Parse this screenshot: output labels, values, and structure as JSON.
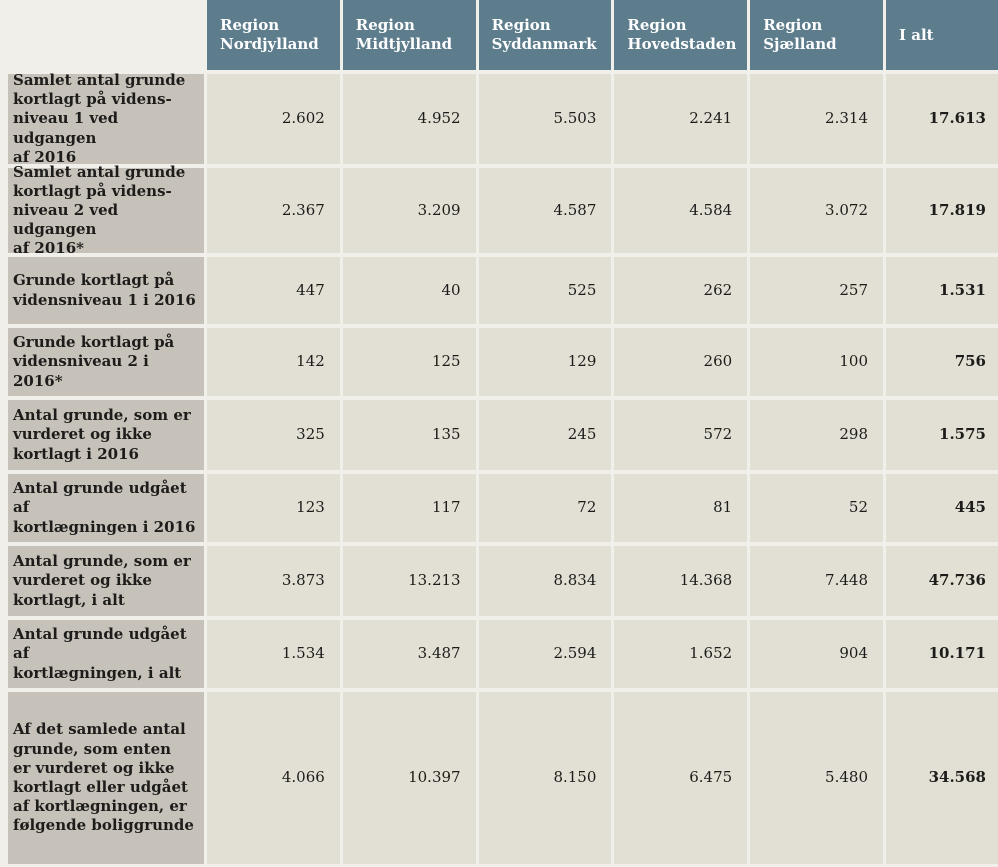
{
  "table": {
    "headers": [
      "Region\nNordjylland",
      "Region\nMidtjylland",
      "Region\nSyddanmark",
      "Region\nHovedstaden",
      "Region\nSjælland",
      "I alt"
    ],
    "rows": [
      {
        "label": "Samlet antal grunde\nkortlagt på videns-\nniveau 1 ved udgangen\naf 2016",
        "values": [
          "2.602",
          "4.952",
          "5.503",
          "2.241",
          "2.314"
        ],
        "total": "17.613"
      },
      {
        "label": "Samlet antal grunde\nkortlagt på videns-\nniveau 2 ved udgangen\naf 2016*",
        "values": [
          "2.367",
          "3.209",
          "4.587",
          "4.584",
          "3.072"
        ],
        "total": "17.819"
      },
      {
        "label": "Grunde kortlagt på\nvidensniveau 1 i 2016",
        "values": [
          "447",
          "40",
          "525",
          "262",
          "257"
        ],
        "total": "1.531"
      },
      {
        "label": "Grunde kortlagt på\nvidensniveau 2 i 2016*",
        "values": [
          "142",
          "125",
          "129",
          "260",
          "100"
        ],
        "total": "756"
      },
      {
        "label": "Antal grunde, som er\nvurderet og ikke\nkortlagt i 2016",
        "values": [
          "325",
          "135",
          "245",
          "572",
          "298"
        ],
        "total": "1.575"
      },
      {
        "label": "Antal grunde udgået af\nkortlægningen i 2016",
        "values": [
          "123",
          "117",
          "72",
          "81",
          "52"
        ],
        "total": "445"
      },
      {
        "label": "Antal grunde, som er\nvurderet og ikke\nkortlagt, i alt",
        "values": [
          "3.873",
          "13.213",
          "8.834",
          "14.368",
          "7.448"
        ],
        "total": "47.736"
      },
      {
        "label": "Antal grunde udgået af\nkortlægningen, i alt",
        "values": [
          "1.534",
          "3.487",
          "2.594",
          "1.652",
          "904"
        ],
        "total": "10.171"
      },
      {
        "label": "Af det samlede antal\ngrunde, som enten\ner vurderet og ikke\nkortlagt eller udgået\naf kortlægningen, er\nfølgende boliggrunde",
        "values": [
          "4.066",
          "10.397",
          "8.150",
          "6.475",
          "5.480"
        ],
        "total": "34.568"
      }
    ]
  },
  "colors": {
    "page_bg": "#f0efe9",
    "header_bg": "#5d7c8c",
    "label_bg": "#c6c2b9",
    "cell_bg": "#e2e0d5",
    "header_text": "#ffffff",
    "body_text": "#1d1c1a"
  }
}
